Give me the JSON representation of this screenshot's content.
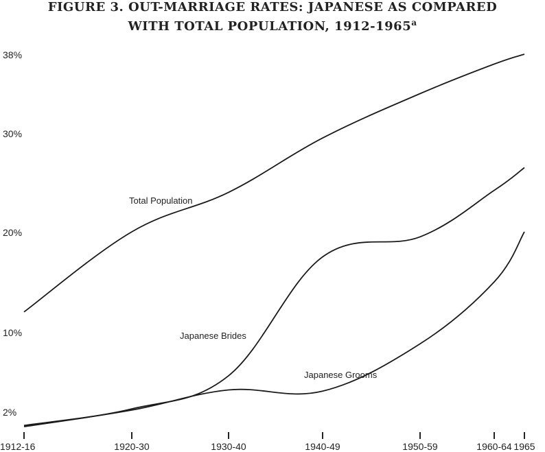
{
  "chart_data": {
    "type": "line",
    "title_line1": "FIGURE 3.   OUT-MARRIAGE RATES: JAPANESE AS COMPARED",
    "title_line2": "WITH TOTAL POPULATION, 1912-1965",
    "title_footnote": "a",
    "xlabel": "",
    "ylabel": "",
    "categories": [
      "1912-16",
      "1920-30",
      "1930-40",
      "1940-49",
      "1950-59",
      "1960-64",
      "1965"
    ],
    "y_ticks": [
      {
        "value": 2,
        "label": "2%"
      },
      {
        "value": 10,
        "label": "10%"
      },
      {
        "value": 20,
        "label": "20%"
      },
      {
        "value": 30,
        "label": "30%"
      },
      {
        "value": 38,
        "label": "38%"
      }
    ],
    "ylim": [
      2,
      38
    ],
    "grid": false,
    "series": [
      {
        "name": "Total Population",
        "values": [
          12.0,
          20.0,
          24.0,
          29.5,
          34.0,
          37.0,
          38.0
        ]
      },
      {
        "name": "Japanese Brides",
        "values": [
          2.1,
          3.5,
          6.3,
          17.5,
          19.5,
          24.2,
          26.5
        ]
      },
      {
        "name": "Japanese Grooms",
        "values": [
          2.0,
          3.4,
          5.1,
          5.0,
          9.0,
          15.0,
          20.0
        ]
      }
    ]
  }
}
